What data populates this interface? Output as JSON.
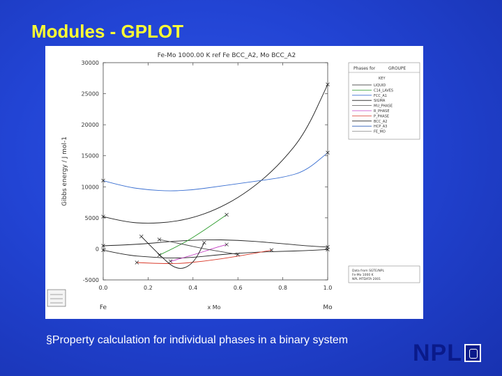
{
  "slide": {
    "title": "Modules - GPLOT",
    "caption": "§Property calculation for individual phases in a binary system",
    "logo_text": "NPL"
  },
  "colors": {
    "background": "#2244d4",
    "title": "#ffff33",
    "caption": "#ffffff"
  },
  "chart_data": {
    "type": "line",
    "title": "Fe-Mo 1000.00 K ref Fe BCC_A2, Mo BCC_A2",
    "xlabel": "x Mo",
    "ylabel": "Gibbs energy / J mol-1",
    "xlim": [
      0.0,
      1.0
    ],
    "ylim": [
      -5000,
      30000
    ],
    "x_ticks": [
      "0.0",
      "0.2",
      "0.4",
      "0.6",
      "0.8",
      "1.0"
    ],
    "y_ticks": [
      "-5000",
      "0",
      "5000",
      "10000",
      "15000",
      "20000",
      "25000",
      "30000"
    ],
    "x_end_labels": [
      "Fe",
      "Mo"
    ],
    "legend": {
      "header": [
        "Phases for",
        "GROUPE"
      ],
      "key_label": "KEY",
      "entries": [
        "LIQUID",
        "C14_LAVES",
        "FCC_A1",
        "SIGMA",
        "MU_PHASE",
        "R_PHASE",
        "P_PHASE",
        "BCC_A2",
        "HCP_A3",
        "FE_MO"
      ]
    },
    "footer_text": [
      "Data from SGTE/NPL",
      "Fe-Mo 1000 K",
      "NPL MTDATA 2001"
    ],
    "series": [
      {
        "color": "#222222",
        "x": [
          0.0,
          0.1,
          0.2,
          0.3,
          0.4,
          0.5,
          0.6,
          0.7,
          0.8,
          0.9,
          1.0
        ],
        "y": [
          5200,
          4300,
          4100,
          4300,
          5000,
          6300,
          8200,
          10800,
          14200,
          18700,
          26500
        ]
      },
      {
        "color": "#222222",
        "x": [
          0.0,
          0.1,
          0.2,
          0.3,
          0.4,
          0.5,
          0.6,
          0.7,
          0.8,
          0.9,
          1.0
        ],
        "y": [
          -200,
          -1000,
          -1300,
          -1500,
          -1400,
          -1000,
          -700,
          -500,
          -400,
          -300,
          -100
        ]
      },
      {
        "color": "#222222",
        "x": [
          0.0,
          0.15,
          0.3,
          0.45,
          0.6,
          0.75,
          0.9,
          1.0
        ],
        "y": [
          500,
          700,
          1200,
          1500,
          1400,
          1000,
          500,
          300
        ]
      },
      {
        "color": "#3a6fd1",
        "x": [
          0.0,
          0.1,
          0.2,
          0.3,
          0.4,
          0.5,
          0.6,
          0.7,
          0.8,
          0.9,
          1.0
        ],
        "y": [
          11000,
          10000,
          9500,
          9300,
          9500,
          10000,
          10500,
          11000,
          11500,
          12500,
          15500
        ]
      },
      {
        "color": "#2a9a2a",
        "x": [
          0.25,
          0.35,
          0.45,
          0.55
        ],
        "y": [
          -1000,
          700,
          3000,
          5500
        ]
      },
      {
        "color": "#d93a2a",
        "x": [
          0.15,
          0.3,
          0.45,
          0.6,
          0.75
        ],
        "y": [
          -2200,
          -2500,
          -2000,
          -1200,
          -200
        ]
      },
      {
        "color": "#c23ac2",
        "x": [
          0.3,
          0.4,
          0.5,
          0.55
        ],
        "y": [
          -2000,
          -1000,
          200,
          700
        ]
      },
      {
        "color": "#1a1a1a",
        "x": [
          0.17,
          0.25,
          0.33,
          0.4,
          0.45
        ],
        "y": [
          2000,
          -1000,
          -3500,
          -2500,
          1000
        ]
      },
      {
        "color": "#444444",
        "x": [
          0.25,
          0.35,
          0.45,
          0.55,
          0.6
        ],
        "y": [
          1500,
          800,
          0,
          -600,
          -900
        ]
      }
    ]
  }
}
